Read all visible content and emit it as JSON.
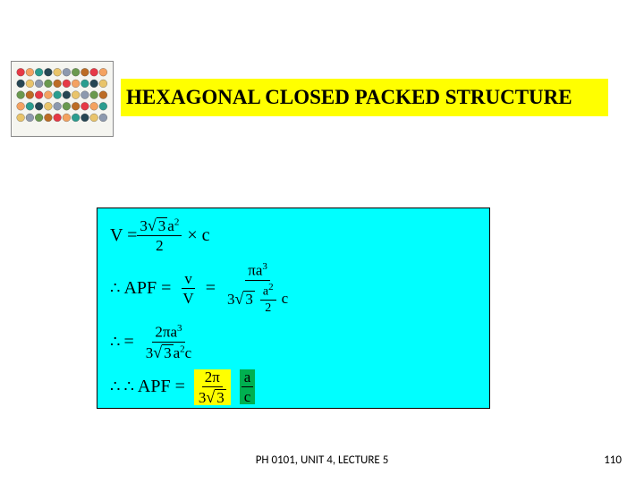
{
  "title": "HEXAGONAL CLOSED PACKED STRUCTURE",
  "thumbnail": {
    "rows": 5,
    "cols": 10,
    "colors": [
      "#e63946",
      "#f4a261",
      "#2a9d8f",
      "#264653",
      "#e9c46a",
      "#8d99ae",
      "#6a994e",
      "#bc6c25"
    ]
  },
  "math": {
    "line1_lhs": "V =",
    "line1_num": "3√3 a²",
    "line1_den": "2",
    "line1_rhs": "× c",
    "line2_pre": "∴APF =",
    "line2_frac1_num": "v",
    "line2_frac1_den": "V",
    "line2_eq": "=",
    "line2_frac2_num": "πa³",
    "line2_frac2_den_l": "3√3",
    "line2_frac2_den_m_num": "a²",
    "line2_frac2_den_m_den": "2",
    "line2_frac2_den_r": "c",
    "line3_pre": "∴=",
    "line3_num": "2πa³",
    "line3_den": "3√3a²c",
    "line4_pre": "∴∴ APF =",
    "line4_f1_num": "2π",
    "line4_f1_den": "3√3",
    "line4_f2_num": "a",
    "line4_f2_den": "c"
  },
  "footer": "PH 0101, UNIT 4, LECTURE 5",
  "page": "110",
  "colors": {
    "title_bg": "#ffff00",
    "math_bg": "#00ffff",
    "hl1": "#ffff00",
    "hl2": "#00b050"
  }
}
